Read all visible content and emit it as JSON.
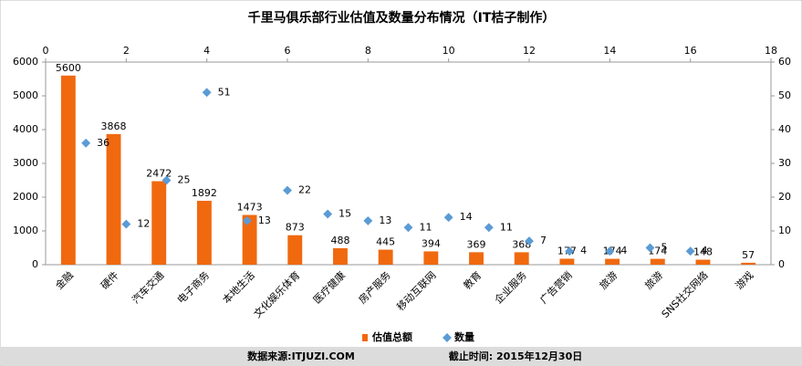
{
  "chart_data": {
    "type": "bar",
    "title": "千里马俱乐部行业估值及数量分布情况（IT桔子制作）",
    "categories": [
      "金融",
      "硬件",
      "汽车交通",
      "电子商务",
      "本地生活",
      "文化娱乐体育",
      "医疗健康",
      "房产服务",
      "移动互联网",
      "教育",
      "企业服务",
      "广告营销",
      "旅游",
      "旅游",
      "SNS社交网络",
      "游戏"
    ],
    "series": [
      {
        "name": "估值总额",
        "type": "bar",
        "color": "#f0690f",
        "values": [
          5600,
          3868,
          2472,
          1892,
          1473,
          873,
          488,
          445,
          394,
          369,
          368,
          177,
          174,
          174,
          148,
          57
        ]
      },
      {
        "name": "数量",
        "type": "scatter",
        "axis": "y2",
        "color": "#5b9bd5",
        "x": [
          1,
          2,
          3,
          4,
          5,
          6,
          7,
          8,
          9,
          10,
          11,
          12,
          13,
          14,
          15,
          16
        ],
        "values": [
          36,
          12,
          25,
          51,
          13,
          22,
          15,
          13,
          11,
          14,
          11,
          7,
          4,
          4,
          5,
          4
        ]
      }
    ],
    "ylim": [
      0,
      6000
    ],
    "yticks": [
      0,
      1000,
      2000,
      3000,
      4000,
      5000,
      6000
    ],
    "y2lim": [
      0,
      60
    ],
    "y2ticks": [
      0,
      10,
      20,
      30,
      40,
      50,
      60
    ],
    "xlim": [
      0,
      18
    ],
    "xticks": [
      0,
      2,
      4,
      6,
      8,
      10,
      12,
      14,
      16,
      18
    ],
    "grid": false,
    "legend": "bottom"
  },
  "footer": {
    "source": "数据来源:ITJUZI.COM",
    "date": "截止时间: 2015年12月30日"
  }
}
